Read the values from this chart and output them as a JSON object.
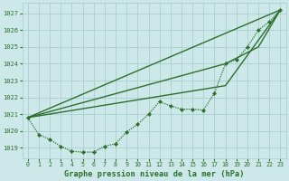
{
  "title": "Graphe pression niveau de la mer (hPa)",
  "background_color": "#cce8e8",
  "grid_color": "#aacece",
  "line_color": "#2d6e2d",
  "xlim": [
    -0.5,
    23.5
  ],
  "ylim": [
    1018.4,
    1027.6
  ],
  "yticks": [
    1019,
    1020,
    1021,
    1022,
    1023,
    1024,
    1025,
    1026,
    1027
  ],
  "xticks": [
    0,
    1,
    2,
    3,
    4,
    5,
    6,
    7,
    8,
    9,
    10,
    11,
    12,
    13,
    14,
    15,
    16,
    17,
    18,
    19,
    20,
    21,
    22,
    23
  ],
  "dot_series": {
    "x": [
      0,
      1,
      2,
      3,
      4,
      5,
      6,
      7,
      8,
      9,
      10,
      11,
      12,
      13,
      14,
      15,
      16,
      17,
      18,
      19,
      20,
      21,
      22,
      23
    ],
    "y": [
      1020.8,
      1019.8,
      1019.5,
      1019.1,
      1018.8,
      1018.75,
      1018.75,
      1019.1,
      1019.25,
      1019.95,
      1020.4,
      1021.0,
      1021.75,
      1021.5,
      1021.3,
      1021.3,
      1021.25,
      1022.25,
      1024.0,
      1024.25,
      1025.0,
      1026.0,
      1026.5,
      1027.2
    ]
  },
  "smooth_lines": [
    {
      "x": [
        0,
        23
      ],
      "y": [
        1020.8,
        1027.2
      ]
    },
    {
      "x": [
        0,
        18,
        23
      ],
      "y": [
        1020.8,
        1022.7,
        1027.2
      ]
    },
    {
      "x": [
        0,
        18,
        21,
        23
      ],
      "y": [
        1020.8,
        1024.0,
        1025.0,
        1027.2
      ]
    }
  ]
}
